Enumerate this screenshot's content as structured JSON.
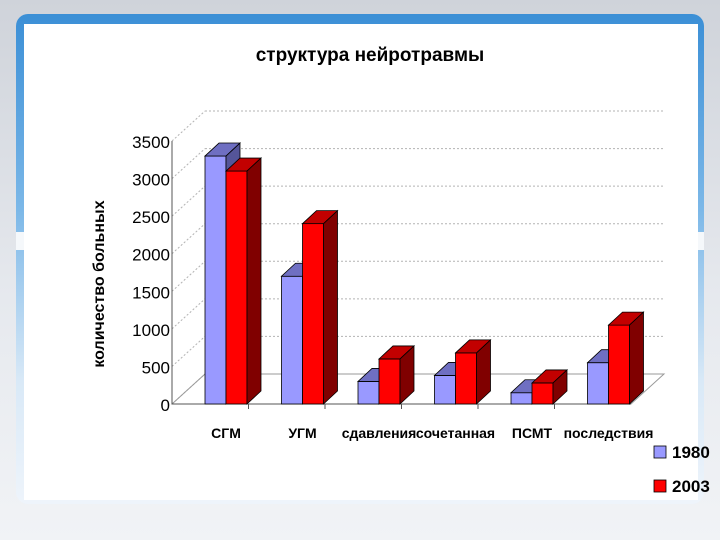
{
  "colors": {
    "series_front": [
      "#9999ff",
      "#ff0000"
    ],
    "series_top": [
      "#6f6fc2",
      "#c20000"
    ],
    "series_side": [
      "#555599",
      "#800000"
    ],
    "background": "#ffffff",
    "gridline": "#b3b3b3"
  },
  "chart_data": {
    "type": "bar",
    "title": "структура нейротравмы",
    "ylabel": "количество больных",
    "xlabel": "",
    "ylim": [
      0,
      3500
    ],
    "yticks": [
      0,
      500,
      1000,
      1500,
      2000,
      2500,
      3000,
      3500
    ],
    "ytick_labels": [
      "0",
      "500",
      "1000",
      "1500",
      "2000",
      "2500",
      "3000",
      "3500"
    ],
    "categories": [
      "СГМ",
      "УГМ",
      "сдавления",
      "сочетанная",
      "ПСМТ",
      "последствия"
    ],
    "series": [
      {
        "name": "1980",
        "values": [
          3300,
          1700,
          300,
          380,
          150,
          550
        ]
      },
      {
        "name": "2003",
        "values": [
          3100,
          2400,
          600,
          680,
          280,
          1050
        ]
      }
    ],
    "grid": true,
    "legend": "bottom-right",
    "projection": "3d"
  }
}
